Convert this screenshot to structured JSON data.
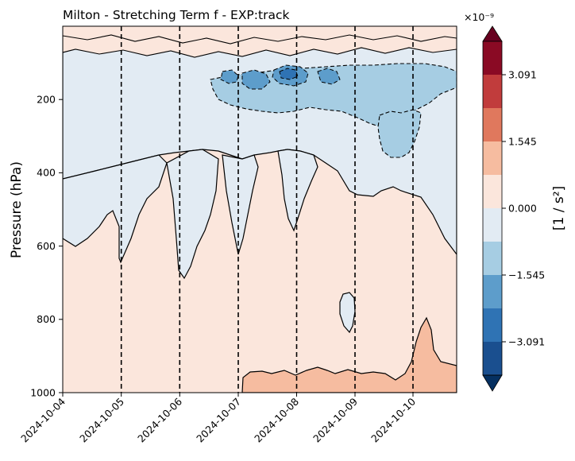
{
  "chart_data": {
    "type": "heatmap",
    "subtype": "filled-contour",
    "title": "Milton - Stretching Term f - EXP:track",
    "xlabel": "",
    "ylabel": "Pressure (hPa)",
    "x_ticks": [
      "2024-10-04",
      "2024-10-05",
      "2024-10-06",
      "2024-10-07",
      "2024-10-08",
      "2024-10-09",
      "2024-10-10"
    ],
    "xlim": [
      "2024-10-04",
      "2024-10-10T18:00"
    ],
    "y_ticks": [
      200,
      400,
      600,
      800,
      1000
    ],
    "ylim": [
      1000,
      0
    ],
    "y_inverted": true,
    "vertical_markers": [
      "2024-10-05",
      "2024-10-06",
      "2024-10-07",
      "2024-10-08",
      "2024-10-09",
      "2024-10-10"
    ],
    "colorbar": {
      "label": "[1 / s²]",
      "multiplier": "×10⁻⁹",
      "tick_values": [
        3.091,
        1.545,
        0.0,
        -1.545,
        -3.091
      ],
      "tick_labels": [
        "3.091",
        "1.545",
        "0.000",
        "−1.545",
        "−3.091"
      ],
      "levels": [
        -4.636,
        -3.863,
        -3.091,
        -2.318,
        -1.545,
        -0.773,
        0.0,
        0.773,
        1.545,
        2.318,
        3.091,
        3.863,
        4.636
      ],
      "extend": "both",
      "colors": [
        "#053061",
        "#1a4f8f",
        "#2f73b4",
        "#5d9dcb",
        "#a6cde3",
        "#e2ebf3",
        "#fbe6dc",
        "#f6bca0",
        "#e0785d",
        "#c13c3c",
        "#8a0a24",
        "#67001f"
      ]
    },
    "field_summary": {
      "upper_band_100_150hPa": -2.0,
      "upper_troposphere_150_400hPa": -0.4,
      "mid_lower_troposphere_400_950hPa": 0.3,
      "surface_after_2024-10-07_950_1000hPa": 1.2
    }
  }
}
